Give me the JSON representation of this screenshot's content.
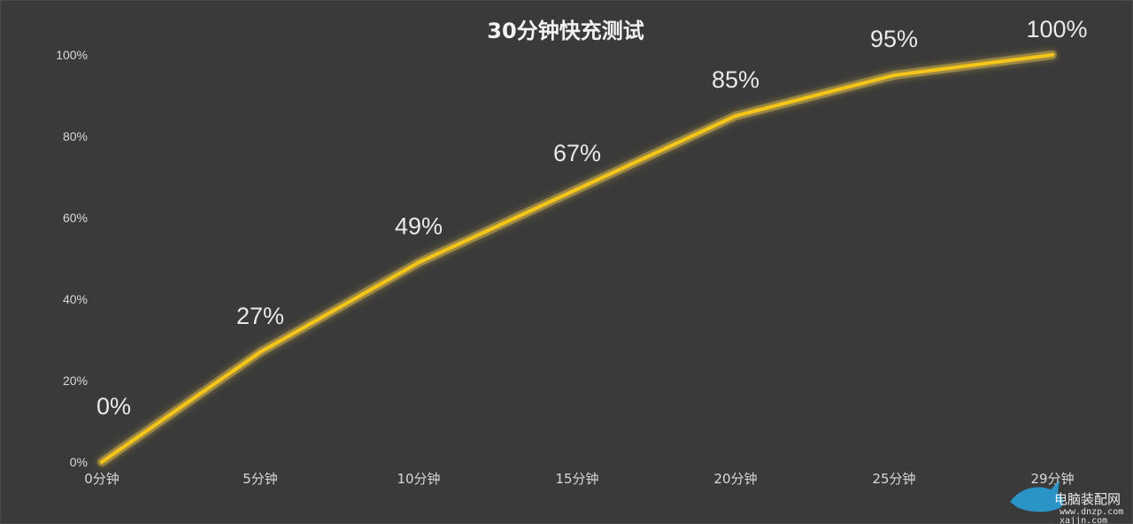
{
  "chart_data": {
    "type": "line",
    "title": "30分钟快充测试",
    "xlabel": "",
    "ylabel": "",
    "categories": [
      "0分钟",
      "5分钟",
      "10分钟",
      "15分钟",
      "20分钟",
      "25分钟",
      "29分钟"
    ],
    "values": [
      0,
      27,
      49,
      67,
      85,
      95,
      100
    ],
    "data_labels": [
      "0%",
      "27%",
      "49%",
      "67%",
      "85%",
      "95%",
      "100%"
    ],
    "y_ticks": [
      "0%",
      "20%",
      "40%",
      "60%",
      "80%",
      "100%"
    ],
    "ylim": [
      0,
      100
    ],
    "grid": false,
    "legend": "none",
    "colors": {
      "background": "#3a3a3a",
      "line": "#f5c518",
      "glow": "#ffd84a",
      "text": "#d8d8d8"
    }
  },
  "watermark": {
    "name": "电脑装配网",
    "url": "www.dnzp.com",
    "sub": "xajjn.com"
  }
}
